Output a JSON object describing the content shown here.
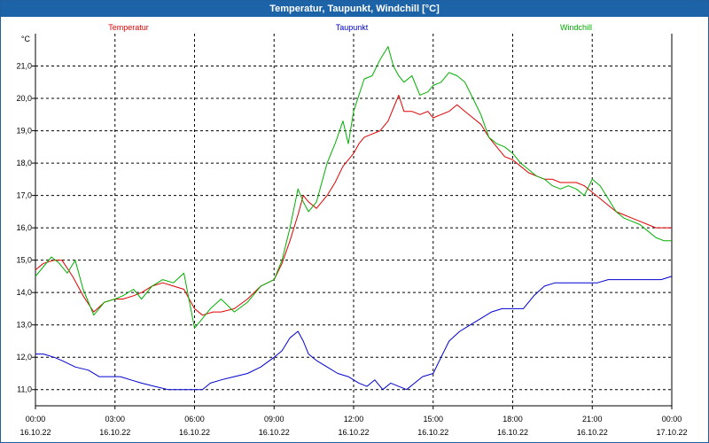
{
  "title": "Temperatur, Taupunkt, Windchill [°C]",
  "chart_data": {
    "type": "line",
    "title": "Temperatur, Taupunkt, Windchill [°C]",
    "unit_label": "°C",
    "ylim": [
      10.5,
      22.0
    ],
    "y_ticks": [
      11.0,
      12.0,
      13.0,
      14.0,
      15.0,
      16.0,
      17.0,
      18.0,
      19.0,
      20.0,
      21.0
    ],
    "y_tick_labels": [
      "11,0",
      "12,0",
      "13,0",
      "14,0",
      "15,0",
      "16,0",
      "17,0",
      "18,0",
      "19,0",
      "20,0",
      "21,0"
    ],
    "xlim": [
      0,
      24
    ],
    "x_ticks": [
      0,
      3,
      6,
      9,
      12,
      15,
      18,
      21,
      24
    ],
    "x_tick_times": [
      "00:00",
      "03:00",
      "06:00",
      "09:00",
      "12:00",
      "15:00",
      "18:00",
      "21:00",
      "00:00"
    ],
    "x_tick_dates": [
      "16.10.22",
      "16.10.22",
      "16.10.22",
      "16.10.22",
      "16.10.22",
      "16.10.22",
      "16.10.22",
      "16.10.22",
      "17.10.22"
    ],
    "grid": true,
    "legend_placement": "top",
    "series": [
      {
        "name": "Temperatur",
        "color": "#e00000",
        "x": [
          0,
          0.3,
          0.7,
          1.0,
          1.4,
          1.8,
          2.2,
          2.6,
          3.0,
          3.3,
          3.7,
          4.0,
          4.4,
          4.8,
          5.2,
          5.6,
          6.0,
          6.3,
          6.7,
          7.0,
          7.5,
          8.0,
          8.5,
          9.0,
          9.3,
          9.6,
          9.9,
          10.1,
          10.3,
          10.6,
          11.0,
          11.3,
          11.6,
          11.8,
          12.0,
          12.2,
          12.4,
          12.7,
          13.0,
          13.3,
          13.5,
          13.7,
          13.9,
          14.2,
          14.5,
          14.8,
          15.0,
          15.3,
          15.6,
          15.9,
          16.2,
          16.5,
          16.8,
          17.1,
          17.4,
          17.7,
          18.0,
          18.3,
          18.6,
          18.9,
          19.2,
          19.5,
          19.8,
          20.1,
          20.4,
          20.7,
          21.0,
          21.3,
          21.6,
          21.9,
          22.2,
          22.5,
          22.8,
          23.1,
          23.4,
          23.7,
          24.0
        ],
        "values": [
          14.7,
          14.9,
          15.0,
          15.0,
          14.5,
          13.9,
          13.4,
          13.7,
          13.8,
          13.8,
          13.9,
          14.0,
          14.2,
          14.3,
          14.2,
          14.1,
          13.5,
          13.3,
          13.4,
          13.4,
          13.5,
          13.8,
          14.2,
          14.4,
          14.9,
          15.6,
          16.4,
          17.0,
          16.8,
          16.6,
          17.0,
          17.4,
          17.9,
          18.1,
          18.3,
          18.6,
          18.8,
          18.9,
          19.0,
          19.3,
          19.7,
          20.1,
          19.6,
          19.6,
          19.5,
          19.6,
          19.4,
          19.5,
          19.6,
          19.8,
          19.6,
          19.4,
          19.2,
          18.8,
          18.5,
          18.2,
          18.1,
          17.9,
          17.7,
          17.6,
          17.5,
          17.5,
          17.4,
          17.4,
          17.4,
          17.3,
          17.1,
          16.9,
          16.7,
          16.5,
          16.4,
          16.3,
          16.2,
          16.1,
          16.0,
          16.0,
          16.0
        ]
      },
      {
        "name": "Taupunkt",
        "color": "#0000d0",
        "x": [
          0,
          0.3,
          0.7,
          1.0,
          1.5,
          2.0,
          2.4,
          2.8,
          3.2,
          3.6,
          4.0,
          4.5,
          5.0,
          5.5,
          6.0,
          6.3,
          6.6,
          7.0,
          7.5,
          8.0,
          8.5,
          9.0,
          9.3,
          9.6,
          9.9,
          10.1,
          10.3,
          10.6,
          11.0,
          11.4,
          11.8,
          12.2,
          12.5,
          12.8,
          13.1,
          13.4,
          13.7,
          14.0,
          14.3,
          14.6,
          15.0,
          15.3,
          15.6,
          16.0,
          16.4,
          16.8,
          17.2,
          17.6,
          18.0,
          18.4,
          18.8,
          19.2,
          19.6,
          20.0,
          20.4,
          20.8,
          21.2,
          21.6,
          22.0,
          22.4,
          22.8,
          23.2,
          23.6,
          24.0
        ],
        "values": [
          12.1,
          12.1,
          12.0,
          11.9,
          11.7,
          11.6,
          11.4,
          11.4,
          11.4,
          11.3,
          11.2,
          11.1,
          11.0,
          11.0,
          11.0,
          11.0,
          11.2,
          11.3,
          11.4,
          11.5,
          11.7,
          12.0,
          12.2,
          12.6,
          12.8,
          12.5,
          12.1,
          11.9,
          11.7,
          11.5,
          11.4,
          11.2,
          11.1,
          11.3,
          11.0,
          11.2,
          11.1,
          11.0,
          11.2,
          11.4,
          11.5,
          12.0,
          12.5,
          12.8,
          13.0,
          13.2,
          13.4,
          13.5,
          13.5,
          13.5,
          13.9,
          14.2,
          14.3,
          14.3,
          14.3,
          14.3,
          14.3,
          14.4,
          14.4,
          14.4,
          14.4,
          14.4,
          14.4,
          14.5
        ]
      },
      {
        "name": "Windchill",
        "color": "#00b000",
        "x": [
          0,
          0.3,
          0.6,
          0.9,
          1.2,
          1.5,
          1.8,
          2.2,
          2.6,
          3.0,
          3.3,
          3.7,
          4.0,
          4.4,
          4.8,
          5.2,
          5.6,
          6.0,
          6.3,
          6.6,
          7.0,
          7.5,
          8.0,
          8.5,
          9.0,
          9.3,
          9.6,
          9.9,
          10.1,
          10.3,
          10.6,
          11.0,
          11.3,
          11.6,
          11.8,
          12.0,
          12.2,
          12.4,
          12.7,
          13.0,
          13.3,
          13.5,
          13.7,
          13.9,
          14.2,
          14.5,
          14.8,
          15.0,
          15.3,
          15.6,
          15.9,
          16.2,
          16.5,
          16.8,
          17.1,
          17.4,
          17.7,
          18.0,
          18.3,
          18.6,
          18.9,
          19.2,
          19.5,
          19.8,
          20.1,
          20.4,
          20.7,
          21.0,
          21.3,
          21.6,
          21.9,
          22.2,
          22.5,
          22.8,
          23.1,
          23.4,
          23.7,
          24.0
        ],
        "values": [
          14.5,
          14.8,
          15.1,
          14.9,
          14.6,
          15.0,
          14.1,
          13.3,
          13.7,
          13.8,
          13.9,
          14.1,
          13.8,
          14.2,
          14.4,
          14.3,
          14.6,
          12.9,
          13.2,
          13.5,
          13.8,
          13.4,
          13.7,
          14.2,
          14.4,
          15.0,
          16.0,
          17.2,
          16.8,
          16.5,
          16.8,
          18.0,
          18.6,
          19.3,
          18.6,
          19.6,
          20.1,
          20.6,
          20.7,
          21.2,
          21.6,
          21.0,
          20.7,
          20.5,
          20.7,
          20.1,
          20.2,
          20.4,
          20.5,
          20.8,
          20.7,
          20.5,
          20.0,
          19.5,
          18.8,
          18.6,
          18.5,
          18.3,
          18.0,
          17.8,
          17.6,
          17.5,
          17.3,
          17.2,
          17.3,
          17.2,
          17.0,
          17.5,
          17.3,
          16.9,
          16.5,
          16.3,
          16.2,
          16.1,
          15.9,
          15.7,
          15.6,
          15.6
        ]
      }
    ]
  }
}
